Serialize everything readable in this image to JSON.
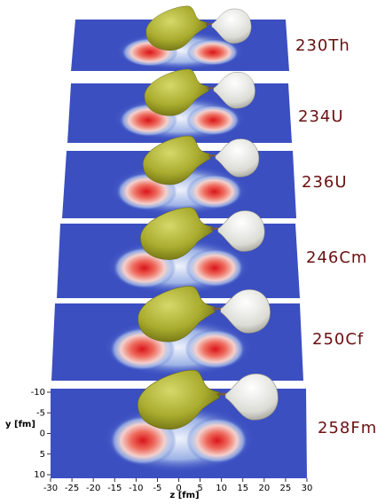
{
  "panels": [
    {
      "label": "230Th"
    },
    {
      "label": "234U"
    },
    {
      "label": "236U"
    },
    {
      "label": "246Cm"
    },
    {
      "label": "250Cf"
    },
    {
      "label": "258Fm"
    }
  ],
  "axes": {
    "x_label": "z [fm]",
    "x_ticks": [
      -30,
      -25,
      -20,
      -15,
      -10,
      -5,
      0,
      5,
      10,
      15,
      20,
      25,
      30
    ],
    "y_label": "y [fm]",
    "y_ticks": [
      -10,
      -5,
      0,
      5,
      10
    ]
  }
}
